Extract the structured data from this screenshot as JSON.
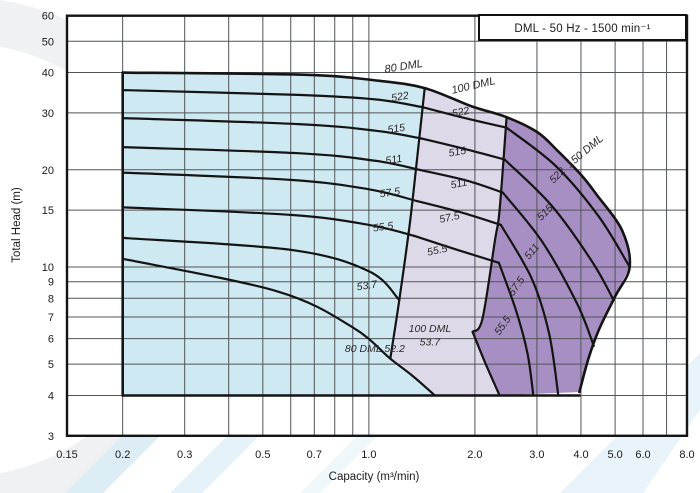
{
  "chart_data": {
    "type": "area",
    "title": "DML - 50 Hz - 1500 min⁻¹",
    "xlabel": "Capacity (m³/min)",
    "ylabel": "Total Head (m)",
    "xscale": "log",
    "yscale": "log",
    "x_edges": [
      0.139,
      8.0
    ],
    "y_edges": [
      3,
      60
    ],
    "x_axis": {
      "ticks": [
        {
          "v": 0.15,
          "t": "0.15",
          "edge": true
        },
        {
          "v": 0.2,
          "t": "0.2"
        },
        {
          "v": 0.3,
          "t": "0.3"
        },
        {
          "v": 0.5,
          "t": "0.5"
        },
        {
          "v": 0.7,
          "t": "0.7"
        },
        {
          "v": 1.0,
          "t": "1.0"
        },
        {
          "v": 2.0,
          "t": "2.0"
        },
        {
          "v": 3.0,
          "t": "3.0"
        },
        {
          "v": 4.0,
          "t": "4.0"
        },
        {
          "v": 5.0,
          "t": "5.0"
        },
        {
          "v": 6.0,
          "t": "6.0"
        },
        {
          "v": 8.0,
          "t": "8.0"
        }
      ],
      "grid": [
        0.2,
        0.3,
        0.4,
        0.5,
        0.6,
        0.7,
        0.8,
        0.9,
        1,
        2,
        3,
        4,
        5,
        6,
        7
      ]
    },
    "y_axis": {
      "ticks": [
        {
          "v": 60,
          "t": "60"
        },
        {
          "v": 50,
          "t": "50"
        },
        {
          "v": 40,
          "t": "40"
        },
        {
          "v": 30,
          "t": "30"
        },
        {
          "v": 20,
          "t": "20"
        },
        {
          "v": 15,
          "t": "15"
        },
        {
          "v": 10,
          "t": "10"
        },
        {
          "v": 9,
          "t": "9"
        },
        {
          "v": 8,
          "t": "8"
        },
        {
          "v": 7,
          "t": "7"
        },
        {
          "v": 6,
          "t": "6"
        },
        {
          "v": 5,
          "t": "5"
        },
        {
          "v": 4,
          "t": "4"
        },
        {
          "v": 3,
          "t": "3"
        }
      ],
      "grid": [
        4,
        5,
        6,
        7,
        8,
        9,
        10,
        15,
        20,
        30,
        40,
        50
      ]
    },
    "regions": [
      {
        "name": "80 DML",
        "color": "#cfe9f2",
        "segments": [
          [
            [
              0.2,
              40
            ],
            [
              0.65,
              39.4
            ],
            [
              1.05,
              37.8
            ],
            [
              1.44,
              35.8
            ]
          ],
          [
            [
              1.44,
              35.8
            ],
            [
              1.36,
              20
            ],
            [
              1.3,
              13
            ],
            [
              1.22,
              7.9
            ],
            [
              1.15,
              5.2
            ]
          ],
          [
            [
              1.15,
              5.2
            ],
            [
              1.33,
              4.6
            ],
            [
              1.54,
              4.0
            ]
          ],
          [
            [
              1.54,
              4.0
            ],
            [
              0.2,
              4.0
            ]
          ]
        ]
      },
      {
        "name": "100 DML",
        "color": "#ded9e9",
        "segments": [
          [
            [
              1.44,
              35.8
            ],
            [
              1.95,
              31.5
            ],
            [
              2.46,
              29.1
            ]
          ],
          [
            [
              2.46,
              29.1
            ],
            [
              2.35,
              15
            ],
            [
              2.28,
              12.1
            ],
            [
              2.1,
              6.9
            ],
            [
              1.97,
              6.3
            ]
          ],
          [
            [
              1.97,
              6.3
            ],
            [
              2.13,
              5.1
            ],
            [
              2.35,
              4.0
            ]
          ],
          [
            [
              2.35,
              4.0
            ],
            [
              1.54,
              4.0
            ]
          ],
          [
            [
              1.54,
              4.0
            ],
            [
              1.33,
              4.6
            ],
            [
              1.15,
              5.2
            ]
          ],
          [
            [
              1.15,
              5.2
            ],
            [
              1.22,
              7.9
            ],
            [
              1.3,
              13
            ],
            [
              1.36,
              20
            ],
            [
              1.44,
              35.8
            ]
          ]
        ]
      },
      {
        "name": "150 DML",
        "color": "#a88fc3",
        "segments": [
          [
            [
              2.46,
              29.1
            ],
            [
              3.0,
              26.2
            ],
            [
              3.42,
              23
            ],
            [
              4.0,
              19.3
            ],
            [
              4.44,
              16.7
            ],
            [
              5.23,
              13
            ],
            [
              5.5,
              10
            ]
          ],
          [
            [
              5.5,
              10
            ],
            [
              5.0,
              8.1
            ],
            [
              4.5,
              6.4
            ],
            [
              4.2,
              5.2
            ],
            [
              3.96,
              4.1
            ]
          ],
          [
            [
              3.96,
              4.1
            ],
            [
              2.35,
              4.0
            ]
          ],
          [
            [
              2.35,
              4.0
            ],
            [
              2.13,
              5.1
            ],
            [
              1.97,
              6.3
            ]
          ],
          [
            [
              1.97,
              6.3
            ],
            [
              2.1,
              6.9
            ],
            [
              2.28,
              12.1
            ],
            [
              2.35,
              15
            ],
            [
              2.46,
              29.1
            ]
          ]
        ]
      }
    ],
    "outlines": [
      {
        "name": "envelope",
        "w": 2.6,
        "points": [
          [
            0.2,
            40
          ],
          [
            0.65,
            39.4
          ],
          [
            1.05,
            37.8
          ],
          [
            1.44,
            35.8
          ],
          [
            1.95,
            31.5
          ],
          [
            2.46,
            29.1
          ],
          [
            3.0,
            26.2
          ],
          [
            3.42,
            23
          ],
          [
            4.0,
            19.3
          ],
          [
            4.44,
            16.7
          ],
          [
            5.23,
            13
          ],
          [
            5.5,
            10
          ],
          [
            5.0,
            8.1
          ],
          [
            4.5,
            6.4
          ],
          [
            4.2,
            5.2
          ],
          [
            3.96,
            4.1
          ]
        ]
      },
      {
        "name": "left-edge",
        "w": 2.6,
        "points": [
          [
            0.2,
            40
          ],
          [
            0.2,
            4.0
          ]
        ]
      },
      {
        "name": "bottom-edge",
        "w": 2.6,
        "points": [
          [
            0.2,
            4.0
          ],
          [
            3.96,
            4.0
          ]
        ]
      },
      {
        "name": "boundary-80-100",
        "w": 2.2,
        "points": [
          [
            1.44,
            35.8
          ],
          [
            1.36,
            20
          ],
          [
            1.3,
            13
          ],
          [
            1.22,
            7.9
          ],
          [
            1.15,
            5.2
          ]
        ]
      },
      {
        "name": "boundary-100-150",
        "w": 2.2,
        "points": [
          [
            2.46,
            29.1
          ],
          [
            2.35,
            15
          ],
          [
            2.28,
            12.1
          ],
          [
            2.1,
            6.9
          ],
          [
            1.97,
            6.3
          ]
        ]
      },
      {
        "name": "runout-100-537",
        "w": 2.2,
        "points": [
          [
            1.97,
            6.3
          ],
          [
            2.13,
            5.1
          ],
          [
            2.35,
            4.0
          ]
        ]
      }
    ],
    "curves": [
      {
        "region": "80 DML",
        "label": "522",
        "points": [
          [
            0.2,
            35.3
          ],
          [
            0.63,
            34.1
          ],
          [
            1.05,
            33.0
          ],
          [
            1.43,
            31.2
          ]
        ]
      },
      {
        "region": "80 DML",
        "label": "515",
        "points": [
          [
            0.2,
            28.9
          ],
          [
            0.63,
            27.7
          ],
          [
            1.05,
            26.4
          ],
          [
            1.41,
            25.0
          ]
        ]
      },
      {
        "region": "80 DML",
        "label": "511",
        "points": [
          [
            0.2,
            23.5
          ],
          [
            0.63,
            22.5
          ],
          [
            1.05,
            21.3
          ],
          [
            1.39,
            20.0
          ]
        ]
      },
      {
        "region": "80 DML",
        "label": "57.5",
        "points": [
          [
            0.2,
            19.6
          ],
          [
            0.6,
            18.6
          ],
          [
            1.0,
            17.4
          ],
          [
            1.37,
            16.0
          ]
        ]
      },
      {
        "region": "80 DML",
        "label": "55.5",
        "points": [
          [
            0.2,
            15.3
          ],
          [
            0.6,
            14.5
          ],
          [
            1.0,
            13.5
          ],
          [
            1.34,
            12.5
          ]
        ]
      },
      {
        "region": "80 DML",
        "label": "53.7",
        "points": [
          [
            0.2,
            12.3
          ],
          [
            0.6,
            11.3
          ],
          [
            1.0,
            9.7
          ],
          [
            1.22,
            7.9
          ]
        ]
      },
      {
        "region": "80 DML",
        "label": "52.2",
        "points": [
          [
            0.2,
            10.6
          ],
          [
            0.55,
            8.4
          ],
          [
            0.9,
            6.5
          ],
          [
            1.15,
            5.2
          ],
          [
            1.33,
            4.6
          ],
          [
            1.54,
            4.0
          ]
        ]
      },
      {
        "region": "100 DML",
        "label": "522",
        "points": [
          [
            1.43,
            31.2
          ],
          [
            1.9,
            28.8
          ],
          [
            2.46,
            27.0
          ]
        ]
      },
      {
        "region": "100 DML",
        "label": "515",
        "points": [
          [
            1.41,
            25.0
          ],
          [
            1.9,
            23.1
          ],
          [
            2.43,
            21.5
          ]
        ]
      },
      {
        "region": "100 DML",
        "label": "511",
        "points": [
          [
            1.39,
            20.0
          ],
          [
            1.9,
            18.5
          ],
          [
            2.4,
            17.0
          ]
        ]
      },
      {
        "region": "100 DML",
        "label": "57.5",
        "points": [
          [
            1.37,
            16.0
          ],
          [
            1.85,
            14.7
          ],
          [
            2.37,
            13.5
          ]
        ]
      },
      {
        "region": "100 DML",
        "label": "55.5",
        "points": [
          [
            1.34,
            12.5
          ],
          [
            1.78,
            11.3
          ],
          [
            2.34,
            10.3
          ]
        ]
      },
      {
        "region": "150 DML",
        "label": "522",
        "points": [
          [
            2.46,
            27.0
          ],
          [
            3.4,
            20.5
          ],
          [
            4.5,
            14.3
          ],
          [
            5.5,
            10.0
          ]
        ]
      },
      {
        "region": "150 DML",
        "label": "515",
        "points": [
          [
            2.43,
            21.5
          ],
          [
            3.3,
            15.5
          ],
          [
            4.3,
            10.4
          ],
          [
            4.95,
            7.9
          ]
        ]
      },
      {
        "region": "150 DML",
        "label": "511",
        "points": [
          [
            2.4,
            17.0
          ],
          [
            3.1,
            12.0
          ],
          [
            3.9,
            7.7
          ],
          [
            4.35,
            5.7
          ]
        ]
      },
      {
        "region": "150 DML",
        "label": "57.5",
        "points": [
          [
            2.37,
            13.5
          ],
          [
            2.9,
            9.2
          ],
          [
            3.25,
            6.2
          ],
          [
            3.45,
            4.0
          ]
        ]
      },
      {
        "region": "150 DML",
        "label": "55.5",
        "points": [
          [
            2.34,
            10.3
          ],
          [
            2.62,
            7.3
          ],
          [
            2.82,
            5.4
          ],
          [
            2.93,
            4.0
          ]
        ]
      }
    ],
    "labels": [
      {
        "text": "80 DML",
        "x": 1.26,
        "y": 40.8,
        "rot": -9,
        "size": 11
      },
      {
        "text": "100 DML",
        "x": 1.99,
        "y": 35.6,
        "rot": -13,
        "size": 11
      },
      {
        "text": "150 DML",
        "x": 4.16,
        "y": 22.4,
        "rot": -40,
        "size": 11
      },
      {
        "text": "522",
        "x": 1.23,
        "y": 32.9,
        "rot": -10,
        "size": 10.5
      },
      {
        "text": "515",
        "x": 1.2,
        "y": 26.2,
        "rot": -9,
        "size": 10.5
      },
      {
        "text": "511",
        "x": 1.18,
        "y": 21.0,
        "rot": -8,
        "size": 10.5
      },
      {
        "text": "57.5",
        "x": 1.15,
        "y": 16.6,
        "rot": -8,
        "size": 10.5
      },
      {
        "text": "55.5",
        "x": 1.1,
        "y": 13.0,
        "rot": -8,
        "size": 10.5
      },
      {
        "text": "53.7",
        "x": 0.99,
        "y": 8.55,
        "rot": -8,
        "size": 10.5
      },
      {
        "text": "80 DML 52.2",
        "x": 1.04,
        "y": 5.45,
        "rot": 0,
        "size": 10.5
      },
      {
        "text": "522",
        "x": 1.83,
        "y": 29.5,
        "rot": -12,
        "size": 10.5
      },
      {
        "text": "515",
        "x": 1.79,
        "y": 22.2,
        "rot": -10,
        "size": 10.5
      },
      {
        "text": "511",
        "x": 1.81,
        "y": 17.7,
        "rot": -12,
        "size": 10.5
      },
      {
        "text": "57.5",
        "x": 1.7,
        "y": 13.9,
        "rot": -12,
        "size": 10.5
      },
      {
        "text": "55.5",
        "x": 1.57,
        "y": 11.0,
        "rot": -12,
        "size": 10.5
      },
      {
        "text": "100 DML",
        "x": 1.49,
        "y": 6.3,
        "rot": 0,
        "size": 10.5
      },
      {
        "text": "53.7",
        "x": 1.49,
        "y": 5.72,
        "rot": 0,
        "size": 10.5
      },
      {
        "text": "522",
        "x": 3.48,
        "y": 18.9,
        "rot": -45,
        "size": 10.5
      },
      {
        "text": "515",
        "x": 3.21,
        "y": 14.5,
        "rot": -45,
        "size": 10.5
      },
      {
        "text": "511",
        "x": 2.95,
        "y": 11.0,
        "rot": -50,
        "size": 10.5
      },
      {
        "text": "57.5",
        "x": 2.67,
        "y": 8.6,
        "rot": -55,
        "size": 10.5
      },
      {
        "text": "55.5",
        "x": 2.44,
        "y": 6.5,
        "rot": -55,
        "size": 10.5
      }
    ],
    "colors": {
      "curve_stroke": "#141414",
      "grid": "#515457",
      "text": "#1c1a1b",
      "label_text": "#2b2829",
      "region_80": "#cfe9f2",
      "region_100": "#ded9e9",
      "region_150": "#a88fc3"
    }
  }
}
